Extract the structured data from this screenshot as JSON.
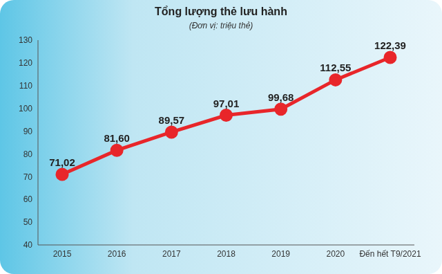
{
  "chart_data": {
    "type": "line",
    "title": "Tổng lượng thẻ lưu hành",
    "subtitle": "(Đơn vị: triệu thẻ)",
    "categories": [
      "2015",
      "2016",
      "2017",
      "2018",
      "2019",
      "2020",
      "Đến hết T9/2021"
    ],
    "values": [
      71.02,
      81.6,
      89.57,
      97.01,
      99.68,
      112.55,
      122.39
    ],
    "value_labels": [
      "71,02",
      "81,60",
      "89,57",
      "97,01",
      "99,68",
      "112,55",
      "122,39"
    ],
    "color": "#e8262a",
    "marker": "circle",
    "ylim": [
      40,
      130
    ],
    "yticks": [
      40,
      50,
      60,
      70,
      80,
      90,
      100,
      110,
      120,
      130
    ],
    "grid": false,
    "data_labels": true
  }
}
